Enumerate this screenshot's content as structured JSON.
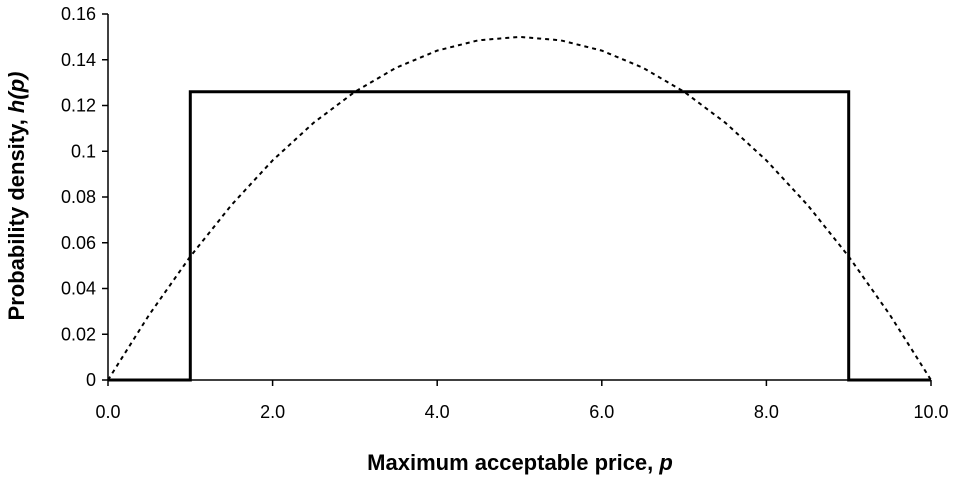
{
  "chart_data": {
    "type": "line",
    "title": "",
    "xlabel_parts": [
      "Maximum acceptable price, ",
      "p"
    ],
    "ylabel_parts": [
      "Probability density, ",
      "h(p)"
    ],
    "xlim": [
      0,
      10
    ],
    "ylim": [
      0,
      0.16
    ],
    "x_ticks": [
      0,
      2,
      4,
      6,
      8,
      10
    ],
    "x_tick_labels": [
      "0.0",
      "2.0",
      "4.0",
      "6.0",
      "8.0",
      "10.0"
    ],
    "y_ticks": [
      0,
      0.02,
      0.04,
      0.06,
      0.08,
      0.1,
      0.12,
      0.14,
      0.16
    ],
    "y_tick_labels": [
      "0",
      "0.02",
      "0.04",
      "0.06",
      "0.08",
      "0.1",
      "0.12",
      "0.14",
      "0.16"
    ],
    "grid": false,
    "legend": "none",
    "series": [
      {
        "style": "solid",
        "color": "#000000",
        "x": [
          0,
          1.0,
          1.0,
          9.0,
          9.0,
          10
        ],
        "y": [
          0,
          0,
          0.126,
          0.126,
          0,
          0
        ]
      },
      {
        "style": "dotted",
        "color": "#000000",
        "x": [
          0,
          0.5,
          1.0,
          1.5,
          2.0,
          2.5,
          3.0,
          3.5,
          4.0,
          4.5,
          5.0,
          5.5,
          6.0,
          6.5,
          7.0,
          7.5,
          8.0,
          8.5,
          9.0,
          9.5,
          10.0
        ],
        "y": [
          0,
          0.0285,
          0.054,
          0.0765,
          0.096,
          0.1125,
          0.126,
          0.1365,
          0.144,
          0.1485,
          0.15,
          0.1485,
          0.144,
          0.1365,
          0.126,
          0.1125,
          0.096,
          0.0765,
          0.054,
          0.0285,
          0
        ]
      }
    ]
  }
}
